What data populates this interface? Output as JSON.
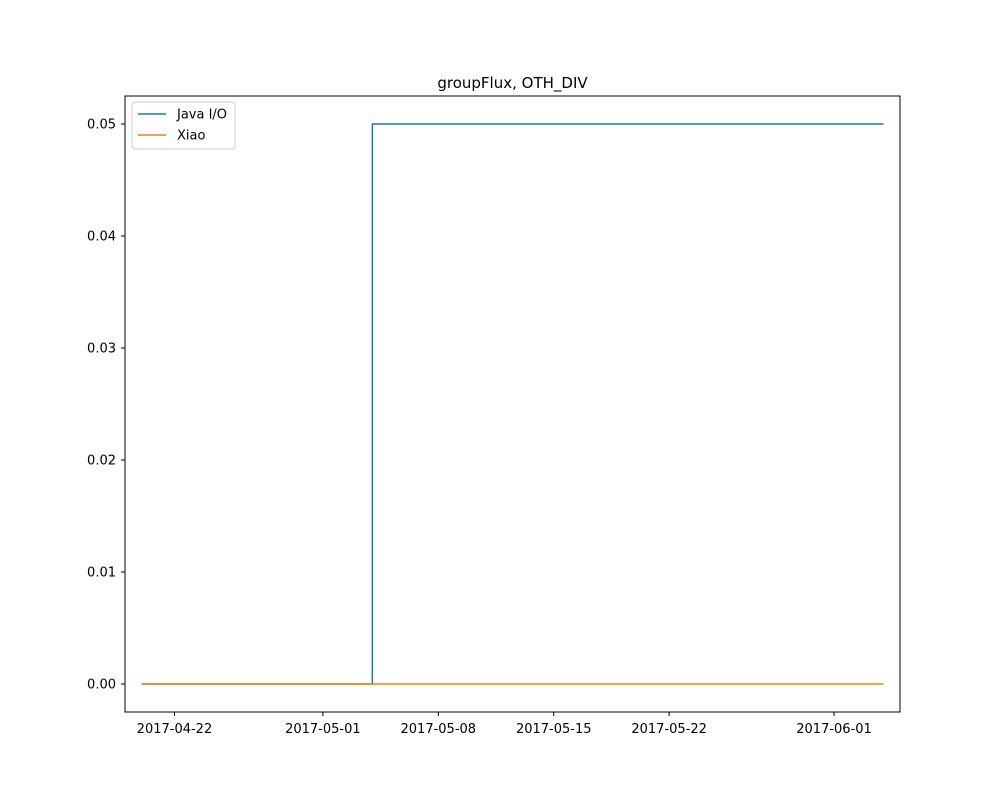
{
  "chart_data": {
    "type": "line",
    "title": "groupFlux, OTH_DIV",
    "xlabel": "",
    "ylabel": "",
    "x_type": "date",
    "xlim": [
      "2017-04-19",
      "2017-06-05"
    ],
    "ylim": [
      -0.0025,
      0.0525
    ],
    "x_ticks": [
      "2017-04-22",
      "2017-05-01",
      "2017-05-08",
      "2017-05-15",
      "2017-05-22",
      "2017-06-01"
    ],
    "y_ticks": [
      0.0,
      0.01,
      0.02,
      0.03,
      0.04,
      0.05
    ],
    "y_tick_labels": [
      "0.00",
      "0.01",
      "0.02",
      "0.03",
      "0.04",
      "0.05"
    ],
    "grid": false,
    "legend_position": "upper left",
    "series": [
      {
        "name": "Java I/O",
        "color": "#1f77b4",
        "step": true,
        "x": [
          "2017-04-20",
          "2017-05-04",
          "2017-05-04",
          "2017-06-04"
        ],
        "y": [
          0.0,
          0.0,
          0.05,
          0.05
        ]
      },
      {
        "name": "Xiao",
        "color": "#ff7f0e",
        "step": false,
        "x": [
          "2017-04-20",
          "2017-06-04"
        ],
        "y": [
          0.0,
          0.0
        ]
      }
    ]
  }
}
